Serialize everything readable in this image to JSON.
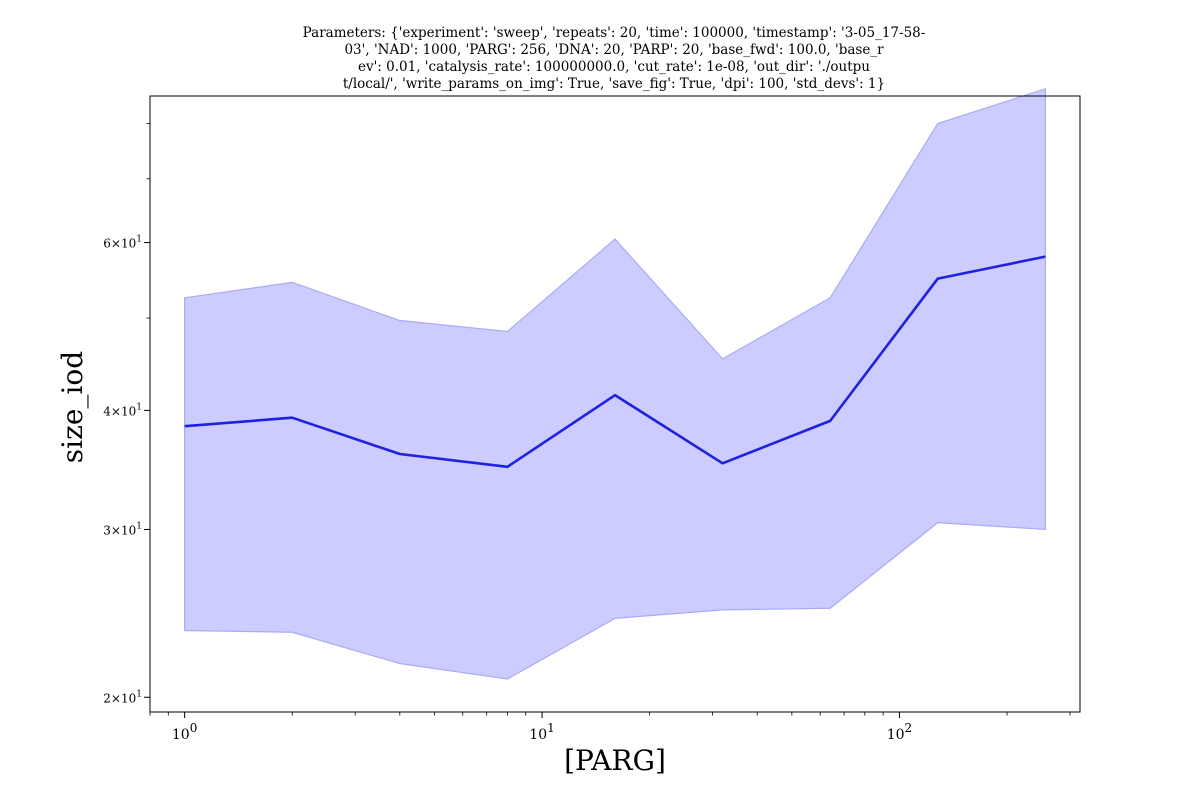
{
  "chart_data": {
    "type": "line",
    "title_lines": [
      "Parameters: {'experiment': 'sweep', 'repeats': 20, 'time': 100000, 'timestamp': '3-05_17-58-",
      "03', 'NAD': 1000, 'PARG': 256, 'DNA': 20, 'PARP': 20, 'base_fwd': 100.0, 'base_r",
      "ev': 0.01, 'catalysis_rate': 100000000.0, 'cut_rate': 1e-08, 'out_dir': './outpu",
      "t/local/', 'write_params_on_img': True, 'save_fig': True, 'dpi': 100, 'std_devs': 1}"
    ],
    "xlabel": "[PARG]",
    "ylabel": "size_iod",
    "xscale": "log",
    "yscale": "log",
    "xlim": [
      0.8,
      320
    ],
    "ylim": [
      19.3,
      85.5
    ],
    "x_ticks": [
      {
        "value": 1,
        "base": "10",
        "exp": "0"
      },
      {
        "value": 10,
        "base": "10",
        "exp": "1"
      },
      {
        "value": 100,
        "base": "10",
        "exp": "2"
      }
    ],
    "y_ticks": [
      {
        "value": 20,
        "mant": "2",
        "base": "10",
        "exp": "1"
      },
      {
        "value": 30,
        "mant": "3",
        "base": "10",
        "exp": "1"
      },
      {
        "value": 40,
        "mant": "4",
        "base": "10",
        "exp": "1"
      },
      {
        "value": 60,
        "mant": "6",
        "base": "10",
        "exp": "1"
      }
    ],
    "x": [
      1,
      2,
      4,
      8,
      16,
      32,
      64,
      128,
      256
    ],
    "series": [
      {
        "values": [
          38.5,
          39.3,
          36.0,
          34.9,
          41.5,
          35.2,
          39.0,
          55.0,
          58.0
        ],
        "upper": [
          52.5,
          54.5,
          49.7,
          48.4,
          60.5,
          45.3,
          52.5,
          80.0,
          87.0
        ],
        "lower": [
          23.5,
          23.4,
          21.7,
          20.9,
          24.2,
          24.7,
          24.8,
          30.5,
          30.0
        ],
        "color": "#2020e0",
        "fill_color": "#ccccff",
        "fill_edge": "#aaaaf5"
      }
    ]
  }
}
